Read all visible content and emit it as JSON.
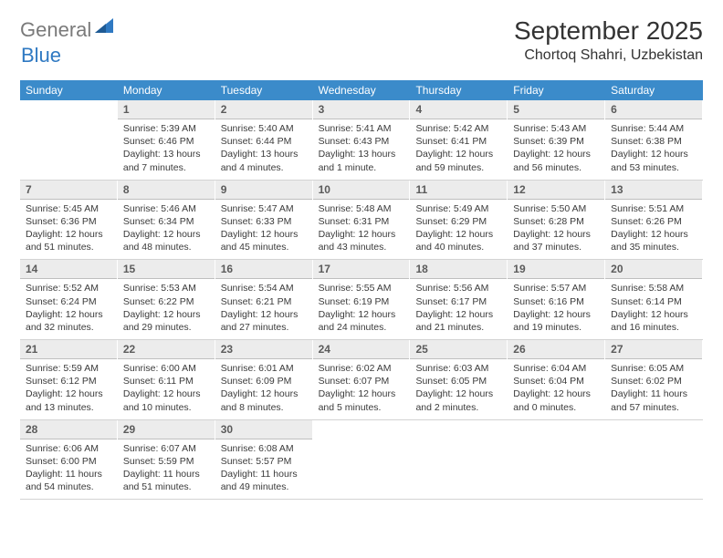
{
  "logo": {
    "general": "General",
    "blue": "Blue"
  },
  "title": "September 2025",
  "location": "Chortoq Shahri, Uzbekistan",
  "colors": {
    "header_bg": "#3b8bca",
    "header_text": "#ffffff",
    "daynum_bg": "#ececec",
    "daynum_text": "#5b5b5b",
    "body_text": "#3a3a3a",
    "rule": "#d3d3d3",
    "logo_gray": "#7a7a7a",
    "logo_blue": "#2f79c2"
  },
  "dow": [
    "Sunday",
    "Monday",
    "Tuesday",
    "Wednesday",
    "Thursday",
    "Friday",
    "Saturday"
  ],
  "weeks": [
    [
      null,
      {
        "n": "1",
        "sr": "Sunrise: 5:39 AM",
        "ss": "Sunset: 6:46 PM",
        "dl": "Daylight: 13 hours and 7 minutes."
      },
      {
        "n": "2",
        "sr": "Sunrise: 5:40 AM",
        "ss": "Sunset: 6:44 PM",
        "dl": "Daylight: 13 hours and 4 minutes."
      },
      {
        "n": "3",
        "sr": "Sunrise: 5:41 AM",
        "ss": "Sunset: 6:43 PM",
        "dl": "Daylight: 13 hours and 1 minute."
      },
      {
        "n": "4",
        "sr": "Sunrise: 5:42 AM",
        "ss": "Sunset: 6:41 PM",
        "dl": "Daylight: 12 hours and 59 minutes."
      },
      {
        "n": "5",
        "sr": "Sunrise: 5:43 AM",
        "ss": "Sunset: 6:39 PM",
        "dl": "Daylight: 12 hours and 56 minutes."
      },
      {
        "n": "6",
        "sr": "Sunrise: 5:44 AM",
        "ss": "Sunset: 6:38 PM",
        "dl": "Daylight: 12 hours and 53 minutes."
      }
    ],
    [
      {
        "n": "7",
        "sr": "Sunrise: 5:45 AM",
        "ss": "Sunset: 6:36 PM",
        "dl": "Daylight: 12 hours and 51 minutes."
      },
      {
        "n": "8",
        "sr": "Sunrise: 5:46 AM",
        "ss": "Sunset: 6:34 PM",
        "dl": "Daylight: 12 hours and 48 minutes."
      },
      {
        "n": "9",
        "sr": "Sunrise: 5:47 AM",
        "ss": "Sunset: 6:33 PM",
        "dl": "Daylight: 12 hours and 45 minutes."
      },
      {
        "n": "10",
        "sr": "Sunrise: 5:48 AM",
        "ss": "Sunset: 6:31 PM",
        "dl": "Daylight: 12 hours and 43 minutes."
      },
      {
        "n": "11",
        "sr": "Sunrise: 5:49 AM",
        "ss": "Sunset: 6:29 PM",
        "dl": "Daylight: 12 hours and 40 minutes."
      },
      {
        "n": "12",
        "sr": "Sunrise: 5:50 AM",
        "ss": "Sunset: 6:28 PM",
        "dl": "Daylight: 12 hours and 37 minutes."
      },
      {
        "n": "13",
        "sr": "Sunrise: 5:51 AM",
        "ss": "Sunset: 6:26 PM",
        "dl": "Daylight: 12 hours and 35 minutes."
      }
    ],
    [
      {
        "n": "14",
        "sr": "Sunrise: 5:52 AM",
        "ss": "Sunset: 6:24 PM",
        "dl": "Daylight: 12 hours and 32 minutes."
      },
      {
        "n": "15",
        "sr": "Sunrise: 5:53 AM",
        "ss": "Sunset: 6:22 PM",
        "dl": "Daylight: 12 hours and 29 minutes."
      },
      {
        "n": "16",
        "sr": "Sunrise: 5:54 AM",
        "ss": "Sunset: 6:21 PM",
        "dl": "Daylight: 12 hours and 27 minutes."
      },
      {
        "n": "17",
        "sr": "Sunrise: 5:55 AM",
        "ss": "Sunset: 6:19 PM",
        "dl": "Daylight: 12 hours and 24 minutes."
      },
      {
        "n": "18",
        "sr": "Sunrise: 5:56 AM",
        "ss": "Sunset: 6:17 PM",
        "dl": "Daylight: 12 hours and 21 minutes."
      },
      {
        "n": "19",
        "sr": "Sunrise: 5:57 AM",
        "ss": "Sunset: 6:16 PM",
        "dl": "Daylight: 12 hours and 19 minutes."
      },
      {
        "n": "20",
        "sr": "Sunrise: 5:58 AM",
        "ss": "Sunset: 6:14 PM",
        "dl": "Daylight: 12 hours and 16 minutes."
      }
    ],
    [
      {
        "n": "21",
        "sr": "Sunrise: 5:59 AM",
        "ss": "Sunset: 6:12 PM",
        "dl": "Daylight: 12 hours and 13 minutes."
      },
      {
        "n": "22",
        "sr": "Sunrise: 6:00 AM",
        "ss": "Sunset: 6:11 PM",
        "dl": "Daylight: 12 hours and 10 minutes."
      },
      {
        "n": "23",
        "sr": "Sunrise: 6:01 AM",
        "ss": "Sunset: 6:09 PM",
        "dl": "Daylight: 12 hours and 8 minutes."
      },
      {
        "n": "24",
        "sr": "Sunrise: 6:02 AM",
        "ss": "Sunset: 6:07 PM",
        "dl": "Daylight: 12 hours and 5 minutes."
      },
      {
        "n": "25",
        "sr": "Sunrise: 6:03 AM",
        "ss": "Sunset: 6:05 PM",
        "dl": "Daylight: 12 hours and 2 minutes."
      },
      {
        "n": "26",
        "sr": "Sunrise: 6:04 AM",
        "ss": "Sunset: 6:04 PM",
        "dl": "Daylight: 12 hours and 0 minutes."
      },
      {
        "n": "27",
        "sr": "Sunrise: 6:05 AM",
        "ss": "Sunset: 6:02 PM",
        "dl": "Daylight: 11 hours and 57 minutes."
      }
    ],
    [
      {
        "n": "28",
        "sr": "Sunrise: 6:06 AM",
        "ss": "Sunset: 6:00 PM",
        "dl": "Daylight: 11 hours and 54 minutes."
      },
      {
        "n": "29",
        "sr": "Sunrise: 6:07 AM",
        "ss": "Sunset: 5:59 PM",
        "dl": "Daylight: 11 hours and 51 minutes."
      },
      {
        "n": "30",
        "sr": "Sunrise: 6:08 AM",
        "ss": "Sunset: 5:57 PM",
        "dl": "Daylight: 11 hours and 49 minutes."
      },
      null,
      null,
      null,
      null
    ]
  ]
}
